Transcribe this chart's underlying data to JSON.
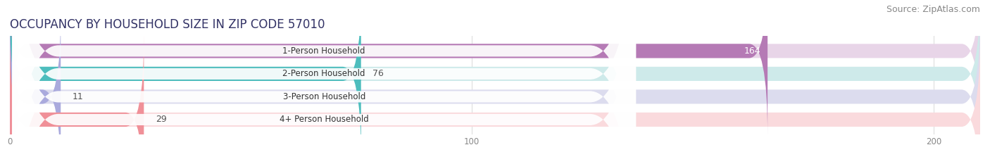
{
  "title": "OCCUPANCY BY HOUSEHOLD SIZE IN ZIP CODE 57010",
  "source": "Source: ZipAtlas.com",
  "categories": [
    "1-Person Household",
    "2-Person Household",
    "3-Person Household",
    "4+ Person Household"
  ],
  "values": [
    164,
    76,
    11,
    29
  ],
  "bar_colors": [
    "#b57ab5",
    "#4dbdbd",
    "#aaaadd",
    "#f09098"
  ],
  "bar_bg_colors": [
    "#e8d5e8",
    "#ceeaea",
    "#dcdcee",
    "#fadadd"
  ],
  "xlim": [
    0,
    210
  ],
  "xticks": [
    0,
    100,
    200
  ],
  "title_fontsize": 12,
  "source_fontsize": 9,
  "bar_height": 0.62,
  "figsize": [
    14.06,
    2.33
  ],
  "dpi": 100
}
